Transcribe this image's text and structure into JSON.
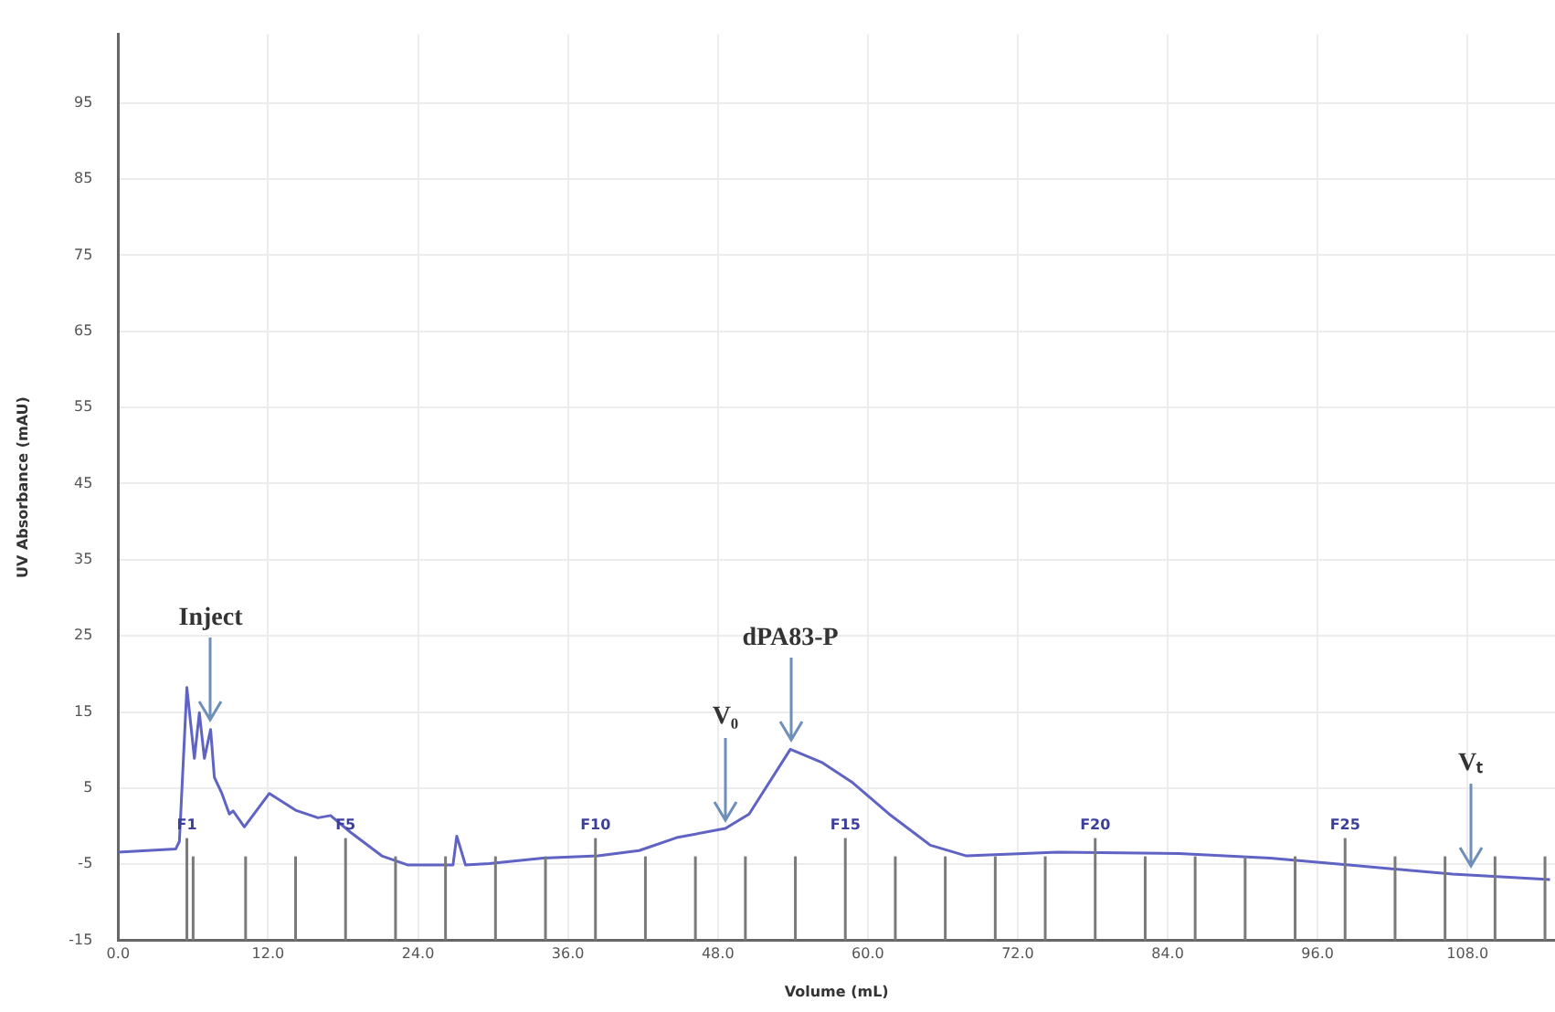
{
  "chart_data": {
    "type": "line",
    "xlabel": "Volume (mL)",
    "ylabel": "UV Absorbance (mAU)",
    "xlim": [
      0,
      115
    ],
    "ylim": [
      -15,
      104
    ],
    "xticks": [
      {
        "value": 0,
        "label": "0.0"
      },
      {
        "value": 12,
        "label": "12.0"
      },
      {
        "value": 24,
        "label": "24.0"
      },
      {
        "value": 36,
        "label": "36.0"
      },
      {
        "value": 48,
        "label": "48.0"
      },
      {
        "value": 60,
        "label": "60.0"
      },
      {
        "value": 72,
        "label": "72.0"
      },
      {
        "value": 84,
        "label": "84.0"
      },
      {
        "value": 96,
        "label": "96.0"
      },
      {
        "value": 108,
        "label": "108.0"
      }
    ],
    "yticks": [
      -15,
      -5,
      5,
      15,
      25,
      35,
      45,
      55,
      65,
      75,
      85,
      95
    ],
    "grid": true,
    "legend": false,
    "marker": "none",
    "line_style": "solid",
    "series": [
      {
        "color": "#5f63c4",
        "x": [
          0,
          4.6,
          4.9,
          5.5,
          6.1,
          6.5,
          6.9,
          7.4,
          7.7,
          8.3,
          8.9,
          9.2,
          10.1,
          12.1,
          14.2,
          16.0,
          17.0,
          18.6,
          21.1,
          23.2,
          26.8,
          27.1,
          27.8,
          29.7,
          34.0,
          38.4,
          41.7,
          44.7,
          48.6,
          50.5,
          53.8,
          56.3,
          58.8,
          61.7,
          65.0,
          67.9,
          75.2,
          84.9,
          92.2,
          98.5,
          106.8,
          114.6
        ],
        "values": [
          -3.4,
          -3.0,
          -2.0,
          18.2,
          8.9,
          14.9,
          8.9,
          12.7,
          6.4,
          4.3,
          1.6,
          2.0,
          -0.1,
          4.3,
          2.1,
          1.1,
          1.4,
          -0.8,
          -3.9,
          -5.1,
          -5.1,
          -1.3,
          -5.1,
          -4.9,
          -4.2,
          -3.9,
          -3.2,
          -1.5,
          -0.3,
          1.6,
          10.1,
          8.4,
          5.7,
          1.6,
          -2.5,
          -3.9,
          -3.4,
          -3.6,
          -4.2,
          -5.1,
          -6.3,
          -7.0
        ]
      }
    ],
    "ref_lines": [
      {
        "axis": "x",
        "value": 5.5,
        "label": "F1"
      },
      {
        "axis": "x",
        "value": 6.0,
        "label": null
      },
      {
        "axis": "x",
        "value": 10.2,
        "label": null
      },
      {
        "axis": "x",
        "value": 14.2,
        "label": null
      },
      {
        "axis": "x",
        "value": 18.2,
        "label": "F5"
      },
      {
        "axis": "x",
        "value": 22.2,
        "label": null
      },
      {
        "axis": "x",
        "value": 26.2,
        "label": null
      },
      {
        "axis": "x",
        "value": 30.2,
        "label": null
      },
      {
        "axis": "x",
        "value": 34.2,
        "label": null
      },
      {
        "axis": "x",
        "value": 38.2,
        "label": "F10"
      },
      {
        "axis": "x",
        "value": 42.2,
        "label": null
      },
      {
        "axis": "x",
        "value": 46.2,
        "label": null
      },
      {
        "axis": "x",
        "value": 50.2,
        "label": null
      },
      {
        "axis": "x",
        "value": 54.2,
        "label": null
      },
      {
        "axis": "x",
        "value": 58.2,
        "label": "F15"
      },
      {
        "axis": "x",
        "value": 62.2,
        "label": null
      },
      {
        "axis": "x",
        "value": 66.2,
        "label": null
      },
      {
        "axis": "x",
        "value": 70.2,
        "label": null
      },
      {
        "axis": "x",
        "value": 74.2,
        "label": null
      },
      {
        "axis": "x",
        "value": 78.2,
        "label": "F20"
      },
      {
        "axis": "x",
        "value": 82.2,
        "label": null
      },
      {
        "axis": "x",
        "value": 86.2,
        "label": null
      },
      {
        "axis": "x",
        "value": 90.2,
        "label": null
      },
      {
        "axis": "x",
        "value": 94.2,
        "label": null
      },
      {
        "axis": "x",
        "value": 98.2,
        "label": "F25"
      },
      {
        "axis": "x",
        "value": 102.2,
        "label": null
      },
      {
        "axis": "x",
        "value": 106.2,
        "label": null
      },
      {
        "axis": "x",
        "value": 110.2,
        "label": null
      },
      {
        "axis": "x",
        "value": 114.2,
        "label": null
      }
    ],
    "annotations": [
      {
        "text": "Inject",
        "x": 7.4,
        "y": 12.7
      },
      {
        "text": "V₀",
        "x": 48.6,
        "y": -0.3
      },
      {
        "text": "dPA83-P",
        "x": 53.8,
        "y": 10.1
      },
      {
        "text": "Vₜ",
        "x": 108.2,
        "y": -6.4
      }
    ]
  }
}
